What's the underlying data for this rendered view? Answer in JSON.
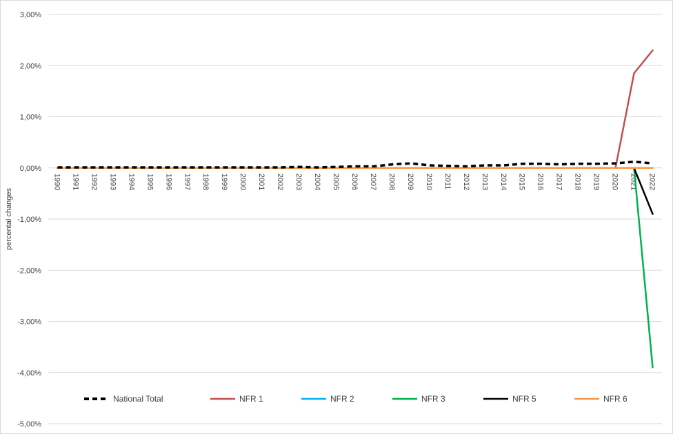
{
  "chart_data": {
    "type": "line",
    "ylabel": "percental changes",
    "ylim": [
      -0.05,
      0.03
    ],
    "yticks": [
      0.03,
      0.02,
      0.01,
      0.0,
      -0.01,
      -0.02,
      -0.03,
      -0.04,
      -0.05
    ],
    "ytick_labels": [
      "3,00%",
      "2,00%",
      "1,00%",
      "0,00%",
      "-1,00%",
      "-2,00%",
      "-3,00%",
      "-4,00%",
      "-5,00%"
    ],
    "grid": true,
    "legend_position": "bottom",
    "categories": [
      "1990",
      "1991",
      "1992",
      "1993",
      "1994",
      "1995",
      "1996",
      "1997",
      "1998",
      "1999",
      "2000",
      "2001",
      "2002",
      "2003",
      "2004",
      "2005",
      "2006",
      "2007",
      "2008",
      "2009",
      "2010",
      "2011",
      "2012",
      "2013",
      "2014",
      "2015",
      "2016",
      "2017",
      "2018",
      "2019",
      "2020",
      "2021",
      "2022"
    ],
    "series": [
      {
        "name": "National Total",
        "color": "#000000",
        "dashed": true,
        "values": [
          0.0001,
          0.0001,
          0.0001,
          0.0001,
          0.0001,
          0.0001,
          0.0001,
          0.0001,
          0.0001,
          0.0001,
          0.0001,
          0.0001,
          0.0001,
          0.0002,
          0.0001,
          0.0002,
          0.0003,
          0.0003,
          0.0007,
          0.0009,
          0.0005,
          0.0004,
          0.0003,
          0.0005,
          0.0005,
          0.0008,
          0.0008,
          0.0007,
          0.0008,
          0.0008,
          0.0009,
          0.0012,
          0.0009
        ]
      },
      {
        "name": "NFR 1",
        "color": "#c0504d",
        "dashed": false,
        "values": [
          0,
          0,
          0,
          0,
          0,
          0,
          0,
          0,
          0,
          0,
          0,
          0,
          0,
          0,
          0,
          0,
          0,
          0,
          0,
          0,
          0,
          0,
          0,
          0,
          0,
          0,
          0,
          0,
          0,
          0,
          0,
          0.0185,
          0.023
        ]
      },
      {
        "name": "NFR 2",
        "color": "#00b0f0",
        "dashed": false,
        "values": [
          0,
          0,
          0,
          0,
          0,
          0,
          0,
          0,
          0,
          0,
          0,
          0,
          0,
          0,
          0,
          0,
          0,
          0,
          0,
          0,
          0,
          0,
          0,
          0,
          0,
          0,
          0,
          0,
          0,
          0,
          0,
          0,
          0
        ]
      },
      {
        "name": "NFR 3",
        "color": "#00b050",
        "dashed": false,
        "values": [
          0,
          0,
          0,
          0,
          0,
          0,
          0,
          0,
          0,
          0,
          0,
          0,
          0,
          0,
          0,
          0,
          0,
          0,
          0,
          0,
          0,
          0,
          0,
          0,
          0,
          0,
          0,
          0,
          0,
          0,
          0,
          0,
          -0.039
        ]
      },
      {
        "name": "NFR 5",
        "color": "#000000",
        "dashed": false,
        "values": [
          0,
          0,
          0,
          0,
          0,
          0,
          0,
          0,
          0,
          0,
          0,
          0,
          0,
          0,
          0,
          0,
          0,
          0,
          0,
          0,
          0,
          0,
          0,
          0,
          0,
          0,
          0,
          0,
          0,
          0,
          0,
          0,
          -0.009
        ]
      },
      {
        "name": "NFR 6",
        "color": "#f79646",
        "dashed": false,
        "values": [
          0,
          0,
          0,
          0,
          0,
          0,
          0,
          0,
          0,
          0,
          0,
          0,
          0,
          0,
          0,
          0,
          0,
          0,
          0,
          0,
          0,
          0,
          0,
          0,
          0,
          0,
          0,
          0,
          0,
          0,
          0,
          0,
          0
        ]
      }
    ]
  }
}
